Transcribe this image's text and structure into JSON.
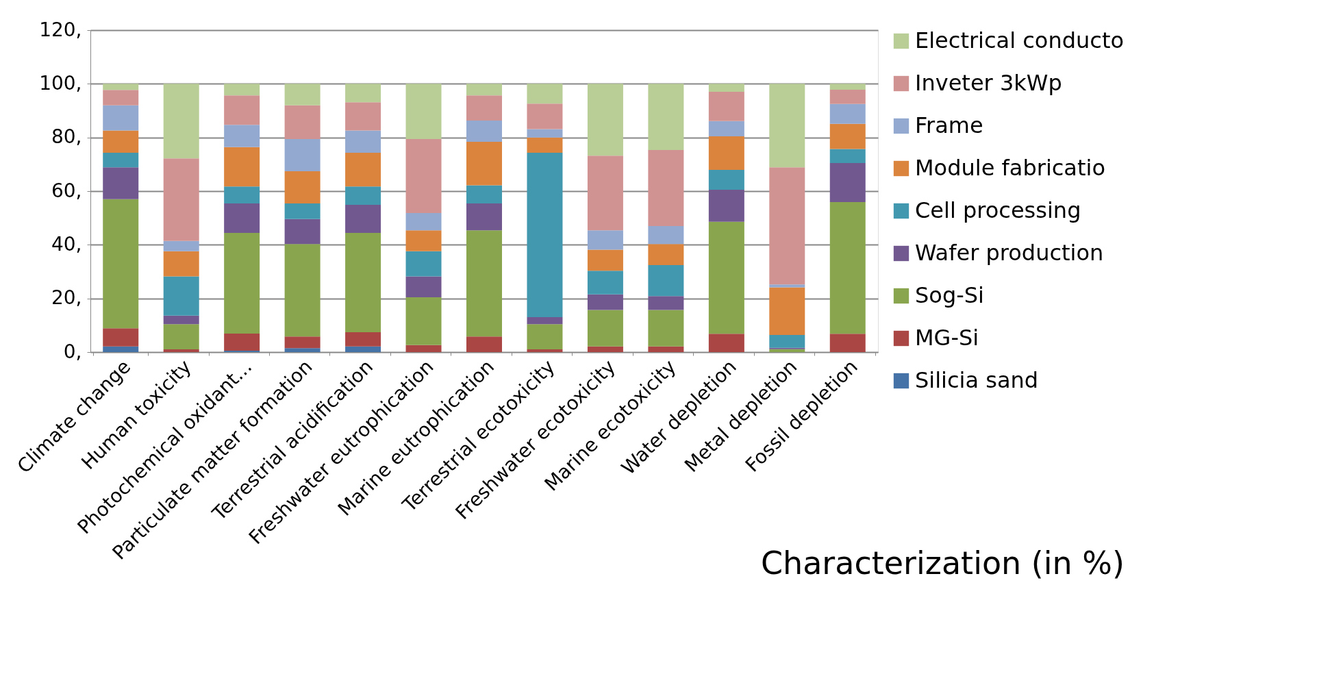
{
  "chart_data": {
    "type": "bar",
    "stacked": true,
    "title": "Characterization (in %)",
    "categories": [
      "Climate change",
      "Human toxicity",
      "Photochemical oxidant...",
      "Particulate matter formation",
      "Terrestrial acidification",
      "Freshwater eutrophication",
      "Marine eutrophication",
      "Terrestrial ecotoxicity",
      "Freshwater ecotoxicity",
      "Marine ecotoxicity",
      "Water depletion",
      "Metal depletion",
      "Fossil depletion"
    ],
    "series": [
      {
        "name": "Silicia sand",
        "color": "#4572a7",
        "values": [
          2.1,
          0,
          0.5,
          1.5,
          2.1,
          0,
          0,
          0,
          0,
          0,
          0,
          0,
          0
        ]
      },
      {
        "name": "MG-Si",
        "color": "#aa4643",
        "values": [
          6.8,
          1.0,
          6.4,
          4.3,
          5.3,
          2.6,
          5.8,
          1.0,
          2.1,
          2.1,
          6.8,
          0,
          6.8
        ]
      },
      {
        "name": "Sog-Si",
        "color": "#89a54e",
        "values": [
          48.1,
          9.4,
          37.5,
          34.5,
          37.0,
          17.8,
          39.6,
          9.4,
          13.6,
          13.6,
          41.8,
          1.1,
          49.1
        ]
      },
      {
        "name": "Wafer production",
        "color": "#71588f",
        "values": [
          11.9,
          3.2,
          11.0,
          9.3,
          10.5,
          7.8,
          10.0,
          2.6,
          5.8,
          5.2,
          11.9,
          0.5,
          14.6
        ]
      },
      {
        "name": "Cell processing",
        "color": "#4198af",
        "values": [
          5.4,
          14.6,
          6.3,
          5.8,
          6.8,
          9.4,
          6.8,
          61.3,
          8.8,
          11.5,
          7.4,
          4.8,
          5.2
        ]
      },
      {
        "name": "Module fabricatio",
        "color": "#db843d",
        "values": [
          8.3,
          9.4,
          14.7,
          12.0,
          12.6,
          7.8,
          16.2,
          5.7,
          7.9,
          7.9,
          12.5,
          17.7,
          9.4
        ]
      },
      {
        "name": "Frame",
        "color": "#93a9cf",
        "values": [
          9.4,
          3.8,
          8.3,
          12.0,
          8.3,
          6.4,
          7.9,
          3.1,
          7.2,
          6.7,
          5.7,
          1.1,
          7.4
        ]
      },
      {
        "name": "Inveter 3kWp",
        "color": "#d19392",
        "values": [
          5.7,
          30.8,
          11.0,
          12.6,
          10.5,
          27.6,
          9.4,
          9.5,
          27.8,
          28.3,
          10.9,
          43.7,
          5.3
        ]
      },
      {
        "name": "Electrical conducto",
        "color": "#b9cd96",
        "values": [
          2.3,
          27.8,
          4.3,
          8.0,
          6.9,
          20.6,
          4.3,
          7.4,
          26.8,
          24.7,
          3.0,
          31.1,
          2.2
        ]
      }
    ],
    "ylim": [
      0,
      120
    ],
    "yticks": [
      {
        "value": 0,
        "label": "0,"
      },
      {
        "value": 20,
        "label": "20,"
      },
      {
        "value": 40,
        "label": "40,"
      },
      {
        "value": 60,
        "label": "60,"
      },
      {
        "value": 80,
        "label": "80,"
      },
      {
        "value": 100,
        "label": "100,"
      },
      {
        "value": 120,
        "label": "120,"
      }
    ],
    "grid": "y",
    "legend": "right"
  }
}
